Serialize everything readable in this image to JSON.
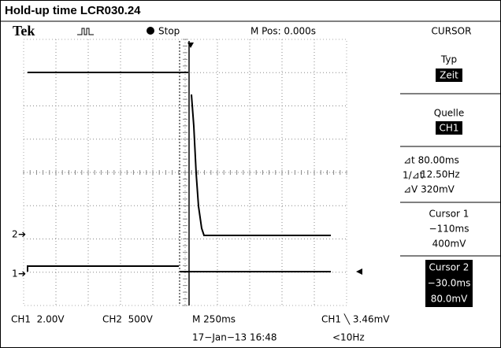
{
  "header": {
    "title": "Hold-up time LCR030.24"
  },
  "status": {
    "brand": "Tek",
    "state": "Stop",
    "position": "M Pos: 0.000s"
  },
  "menu": {
    "title": "CURSOR",
    "items": [
      {
        "label": "Typ",
        "value": "Zeit"
      },
      {
        "label": "Quelle",
        "value": "CH1"
      }
    ],
    "readouts": [
      "⊿t 80.00ms",
      "12.50Hz",
      "⊿V 320mV"
    ],
    "cursor1": {
      "label": "Cursor 1",
      "time": "−110ms",
      "level": "400mV"
    },
    "cursor2": {
      "label": "Cursor 2",
      "time": "−30.0ms",
      "level": "80.0mV"
    }
  },
  "channels": {
    "ch2_marker": "2",
    "ch1_marker": "1"
  },
  "footer": {
    "ch1": "CH1  2.00V",
    "ch2": "CH2  500V",
    "timebase": "M 250ms",
    "trigger": "CH1 ╲ 3.46mV",
    "date": "17−Jan−13 16:48",
    "frequency": "<10Hz"
  }
}
